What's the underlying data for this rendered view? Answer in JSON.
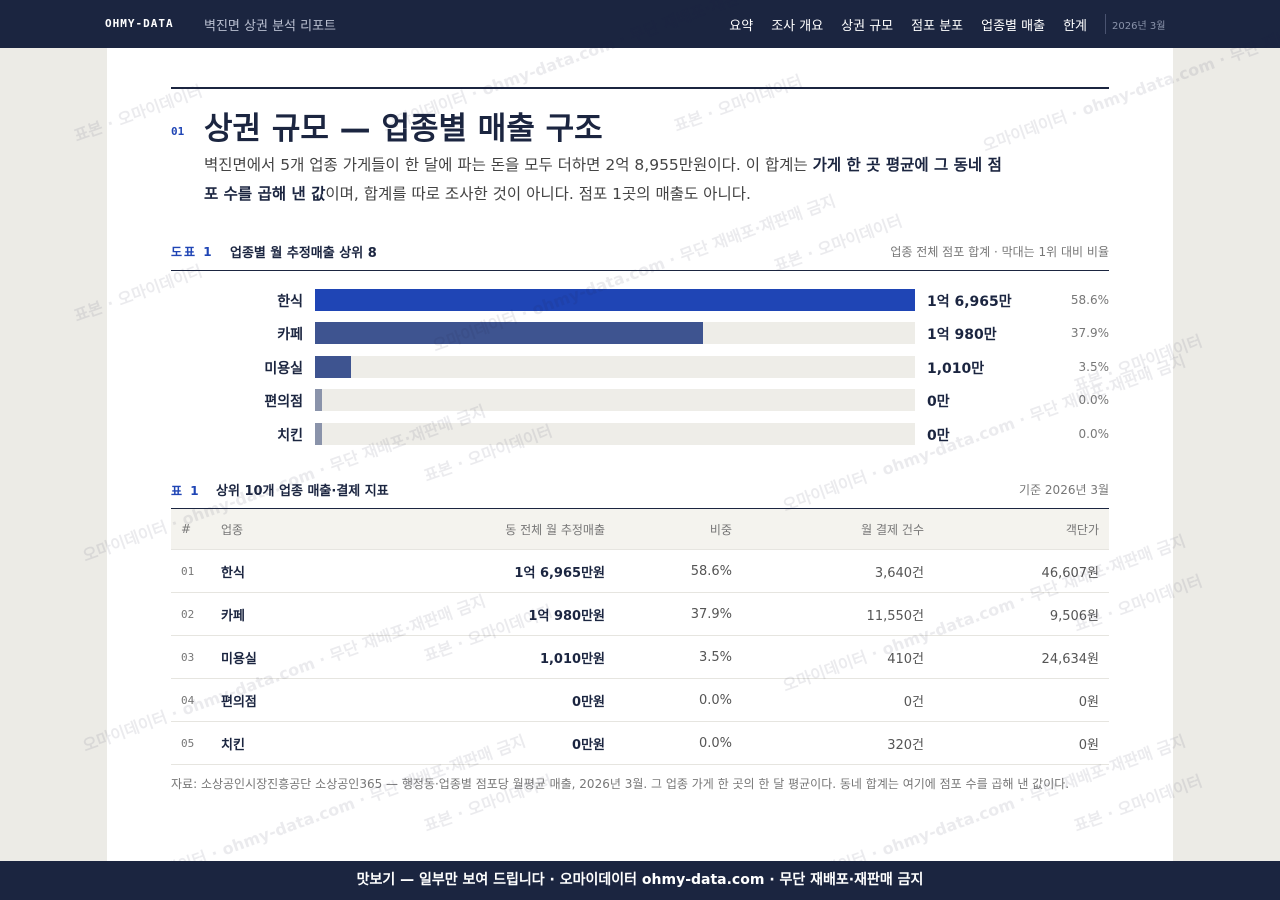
{
  "nav": {
    "brand": "OHMY-DATA",
    "subtitle": "벽진면 상권 분석 리포트",
    "links": [
      "요약",
      "조사 개요",
      "상권 규모",
      "점포 분포",
      "업종별 매출",
      "한계"
    ],
    "date": "2026년 3월"
  },
  "section": {
    "number": "01",
    "title": "상권 규모 — 업종별 매출 구조",
    "lead": [
      "벽진면에서 5개 업종 가게들이 한 달에 파는 돈을 모두 더하면 2억 8,955만원이다. 이 합계는 ",
      "가게 한 곳 평균에 그 동네 점포 수를 곱해 낸 값",
      "이며, 합계를 따로 조사한 것이 아니다. 점포 1곳의 매출도 아니다."
    ]
  },
  "chart_data": {
    "type": "bar",
    "orientation": "horizontal",
    "label": "도표 1",
    "title": "업종별 월 추정매출 상위 8",
    "note": "업종 전체 점포 합계 · 막대는 1위 대비 비율",
    "categories": [
      "한식",
      "카페",
      "미용실",
      "편의점",
      "치킨"
    ],
    "values": [
      16965,
      10980,
      1010,
      0,
      0
    ],
    "value_labels": [
      "1억 6,965만",
      "1억 980만",
      "1,010만",
      "0만",
      "0만"
    ],
    "shares": [
      "58.6%",
      "37.9%",
      "3.5%",
      "0.0%",
      "0.0%"
    ],
    "colors": [
      "#1f45b5",
      "#3e5490",
      "#3e5490",
      "#8a93aa",
      "#8a93aa"
    ]
  },
  "table": {
    "label": "표 1",
    "title": "상위 10개 업종 매출·결제 지표",
    "note": "기준 2026년 3월",
    "columns": [
      "#",
      "업종",
      "동 전체 월 추정매출",
      "비중",
      "월 결제 건수",
      "객단가"
    ],
    "rows": [
      [
        "01",
        "한식",
        "1억 6,965만원",
        "58.6%",
        "3,640건",
        "46,607원"
      ],
      [
        "02",
        "카페",
        "1억 980만원",
        "37.9%",
        "11,550건",
        "9,506원"
      ],
      [
        "03",
        "미용실",
        "1,010만원",
        "3.5%",
        "410건",
        "24,634원"
      ],
      [
        "04",
        "편의점",
        "0만원",
        "0.0%",
        "0건",
        "0원"
      ],
      [
        "05",
        "치킨",
        "0만원",
        "0.0%",
        "320건",
        "0원"
      ]
    ],
    "source": "자료: 소상공인시장진흥공단 소상공인365 — 행정동·업종별 점포당 월평균 매출, 2026년 3월. 그 업종 가게 한 곳의 한 달 평균이다. 동네 합계는 여기에 점포 수를 곱해 낸 값이다."
  },
  "footer": "맛보기 — 일부만 보여 드립니다 · 오마이데이터 ohmy-data.com · 무단 재배포·재판매 금지",
  "watermark": [
    "표본 · 오마이데이터",
    "오마이데이터 · ohmy-data.com · 무단 재배포·재판매 금지"
  ]
}
